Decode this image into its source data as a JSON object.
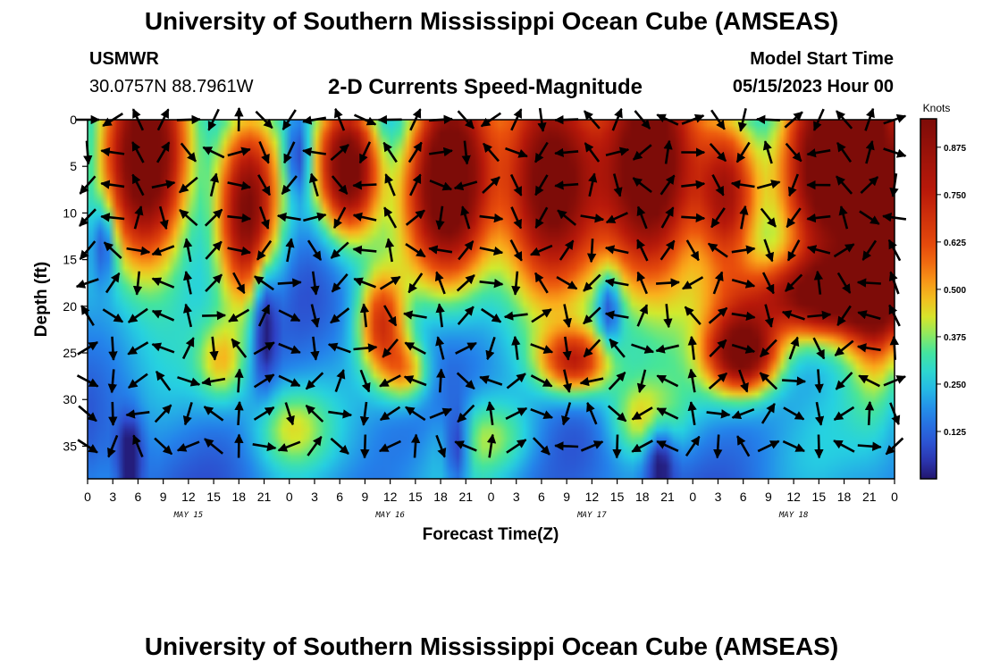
{
  "header": {
    "title": "University of Southern Mississippi Ocean Cube (AMSEAS)",
    "station": "USMWR",
    "coords": "30.0757N  88.7961W",
    "subtitle": "2-D Currents Speed-Magnitude",
    "model_start_label": "Model Start Time",
    "model_start_value": "05/15/2023 Hour 00"
  },
  "footer": {
    "title": "University of Southern Mississippi Ocean Cube (AMSEAS)"
  },
  "chart_data": {
    "type": "heatmap",
    "xlabel": "Forecast Time(Z)",
    "ylabel": "Depth (ft)",
    "x_hours": [
      0,
      96
    ],
    "y_depth_ft": [
      0,
      38.5
    ],
    "x_tick_labels": [
      "0",
      "3",
      "6",
      "9",
      "12",
      "15",
      "18",
      "21",
      "0",
      "3",
      "6",
      "9",
      "12",
      "15",
      "18",
      "21",
      "0",
      "3",
      "6",
      "9",
      "12",
      "15",
      "18",
      "21",
      "0",
      "3",
      "6",
      "9",
      "12",
      "15",
      "18",
      "21",
      "0"
    ],
    "y_ticks": [
      0,
      5,
      10,
      15,
      20,
      25,
      30,
      35
    ],
    "day_labels": [
      {
        "label": "MAY 15",
        "hour": 12
      },
      {
        "label": "MAY 16",
        "hour": 36
      },
      {
        "label": "MAY 17",
        "hour": 60
      },
      {
        "label": "MAY 18",
        "hour": 84
      }
    ],
    "colorbar": {
      "unit": "Knots",
      "range": [
        0,
        0.95
      ],
      "tick_labels": [
        "0.875",
        "0.750",
        "0.625",
        "0.500",
        "0.375",
        "0.250",
        "0.125"
      ],
      "tick_values": [
        0.875,
        0.75,
        0.625,
        0.5,
        0.375,
        0.25,
        0.125
      ]
    },
    "speed_blobs": [
      {
        "t": 7,
        "d": 5,
        "st": 3.5,
        "sd": 8,
        "a": 0.95
      },
      {
        "t": 19,
        "d": 10,
        "st": 2.5,
        "sd": 7,
        "a": 0.75
      },
      {
        "t": 31,
        "d": 5,
        "st": 2.5,
        "sd": 5,
        "a": 0.9
      },
      {
        "t": 43,
        "d": 6,
        "st": 3.5,
        "sd": 8,
        "a": 0.95
      },
      {
        "t": 55,
        "d": 6,
        "st": 4,
        "sd": 8,
        "a": 0.95
      },
      {
        "t": 67,
        "d": 6,
        "st": 4,
        "sd": 9,
        "a": 0.95
      },
      {
        "t": 76,
        "d": 8,
        "st": 2.5,
        "sd": 6,
        "a": 0.6
      },
      {
        "t": 88,
        "d": 5,
        "st": 3.5,
        "sd": 9,
        "a": 0.9
      },
      {
        "t": 94,
        "d": 8,
        "st": 2.5,
        "sd": 12,
        "a": 0.95
      },
      {
        "t": 87,
        "d": 19,
        "st": 7,
        "sd": 3,
        "a": 0.75
      },
      {
        "t": 78,
        "d": 25,
        "st": 3,
        "sd": 3,
        "a": 0.85
      },
      {
        "t": 35,
        "d": 22,
        "st": 2,
        "sd": 4,
        "a": 0.5
      },
      {
        "t": 58,
        "d": 26,
        "st": 3,
        "sd": 2.5,
        "a": 0.55
      },
      {
        "t": 38,
        "d": 27,
        "st": 2,
        "sd": 2.5,
        "a": 0.35
      },
      {
        "t": 16,
        "d": 26,
        "st": 2,
        "sd": 3,
        "a": 0.25
      },
      {
        "t": 66,
        "d": 32,
        "st": 3,
        "sd": 3,
        "a": 0.25
      },
      {
        "t": 24,
        "d": 33,
        "st": 3,
        "sd": 3,
        "a": 0.2
      },
      {
        "t": 48,
        "d": 34,
        "st": 4,
        "sd": 3,
        "a": 0.2
      }
    ],
    "low_spots": [
      {
        "t": 5,
        "d": 36,
        "st": 1,
        "sd": 3
      },
      {
        "t": 21,
        "d": 21,
        "st": 1,
        "sd": 5
      },
      {
        "t": 2,
        "d": 13,
        "st": 1,
        "sd": 3
      },
      {
        "t": 44,
        "d": 35,
        "st": 1,
        "sd": 3
      },
      {
        "t": 68,
        "d": 36,
        "st": 1.2,
        "sd": 3
      },
      {
        "t": 25,
        "d": 4,
        "st": 1,
        "sd": 3
      },
      {
        "t": 62,
        "d": 20,
        "st": 1,
        "sd": 3
      }
    ],
    "arrow_columns_hours": [
      0,
      3,
      6,
      9,
      12,
      15,
      18,
      21,
      24,
      27,
      30,
      33,
      36,
      39,
      42,
      45,
      48,
      51,
      54,
      57,
      60,
      63,
      66,
      69,
      72,
      75,
      78,
      81,
      84,
      87,
      90,
      93,
      96
    ],
    "arrow_rows_depth_ft": [
      0,
      3.5,
      7,
      10.5,
      14,
      17.5,
      21,
      24.5,
      28,
      31.5,
      35
    ]
  }
}
